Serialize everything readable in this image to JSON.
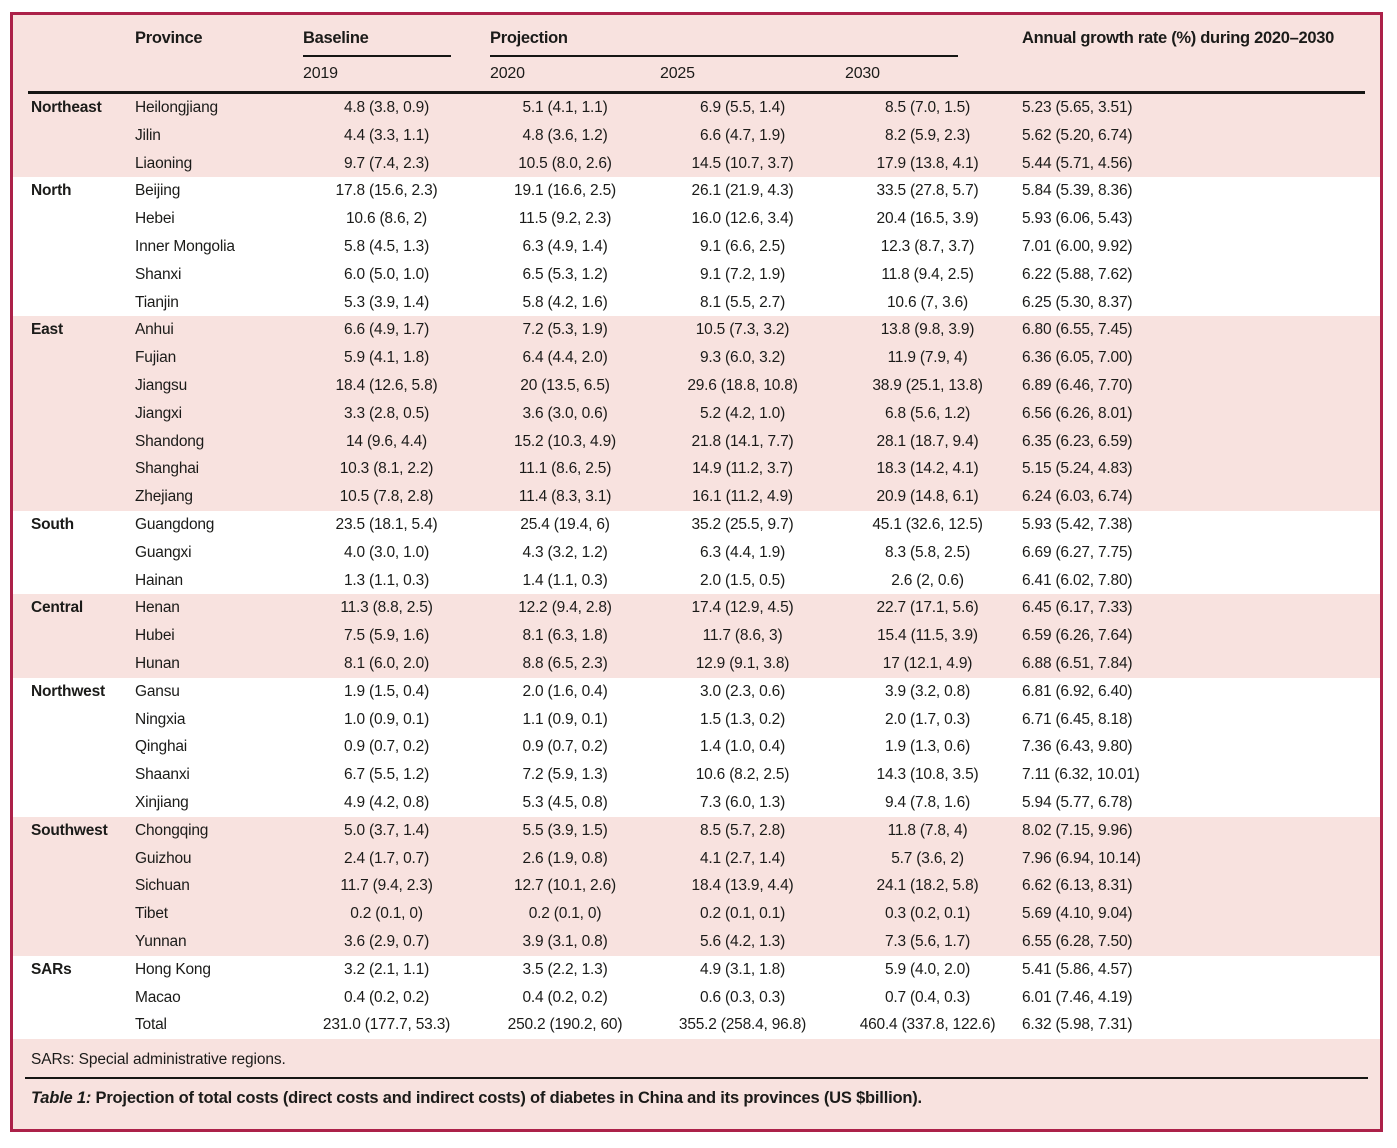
{
  "colors": {
    "frame_border": "#ac2149",
    "band_pink": "#f8e2df",
    "band_white": "#ffffff",
    "rule": "#161614",
    "text": "#1b1b19"
  },
  "header": {
    "province": "Province",
    "baseline_group": "Baseline",
    "projection_group": "Projection",
    "growth": "Annual growth rate (%) during 2020–2030",
    "baseline_year": "2019",
    "projection_years": [
      "2020",
      "2025",
      "2030"
    ]
  },
  "sections": [
    {
      "region": "Northeast",
      "rows": [
        {
          "province": "Heilongjiang",
          "baseline": "4.8 (3.8, 0.9)",
          "y2020": "5.1 (4.1, 1.1)",
          "y2025": "6.9 (5.5, 1.4)",
          "y2030": "8.5 (7.0, 1.5)",
          "growth": "5.23 (5.65, 3.51)"
        },
        {
          "province": "Jilin",
          "baseline": "4.4 (3.3, 1.1)",
          "y2020": "4.8 (3.6, 1.2)",
          "y2025": "6.6 (4.7, 1.9)",
          "y2030": "8.2 (5.9, 2.3)",
          "growth": "5.62 (5.20, 6.74)"
        },
        {
          "province": "Liaoning",
          "baseline": "9.7 (7.4, 2.3)",
          "y2020": "10.5 (8.0, 2.6)",
          "y2025": "14.5 (10.7, 3.7)",
          "y2030": "17.9 (13.8, 4.1)",
          "growth": "5.44 (5.71, 4.56)"
        }
      ]
    },
    {
      "region": "North",
      "rows": [
        {
          "province": "Beijing",
          "baseline": "17.8 (15.6, 2.3)",
          "y2020": "19.1 (16.6, 2.5)",
          "y2025": "26.1 (21.9, 4.3)",
          "y2030": "33.5 (27.8, 5.7)",
          "growth": "5.84 (5.39, 8.36)"
        },
        {
          "province": "Hebei",
          "baseline": "10.6 (8.6, 2)",
          "y2020": "11.5 (9.2, 2.3)",
          "y2025": "16.0 (12.6, 3.4)",
          "y2030": "20.4 (16.5, 3.9)",
          "growth": "5.93 (6.06, 5.43)"
        },
        {
          "province": "Inner Mongolia",
          "baseline": "5.8 (4.5, 1.3)",
          "y2020": "6.3 (4.9, 1.4)",
          "y2025": "9.1 (6.6, 2.5)",
          "y2030": "12.3 (8.7, 3.7)",
          "growth": "7.01 (6.00, 9.92)"
        },
        {
          "province": "Shanxi",
          "baseline": "6.0 (5.0, 1.0)",
          "y2020": "6.5 (5.3, 1.2)",
          "y2025": "9.1 (7.2, 1.9)",
          "y2030": "11.8 (9.4, 2.5)",
          "growth": "6.22 (5.88, 7.62)"
        },
        {
          "province": "Tianjin",
          "baseline": "5.3 (3.9, 1.4)",
          "y2020": "5.8 (4.2, 1.6)",
          "y2025": "8.1 (5.5, 2.7)",
          "y2030": "10.6 (7, 3.6)",
          "growth": "6.25 (5.30, 8.37)"
        }
      ]
    },
    {
      "region": "East",
      "rows": [
        {
          "province": "Anhui",
          "baseline": "6.6 (4.9, 1.7)",
          "y2020": "7.2 (5.3, 1.9)",
          "y2025": "10.5 (7.3, 3.2)",
          "y2030": "13.8 (9.8, 3.9)",
          "growth": "6.80 (6.55, 7.45)"
        },
        {
          "province": "Fujian",
          "baseline": "5.9 (4.1, 1.8)",
          "y2020": "6.4 (4.4, 2.0)",
          "y2025": "9.3 (6.0, 3.2)",
          "y2030": "11.9 (7.9, 4)",
          "growth": "6.36 (6.05, 7.00)"
        },
        {
          "province": "Jiangsu",
          "baseline": "18.4 (12.6, 5.8)",
          "y2020": "20 (13.5, 6.5)",
          "y2025": "29.6 (18.8, 10.8)",
          "y2030": "38.9 (25.1, 13.8)",
          "growth": "6.89 (6.46, 7.70)"
        },
        {
          "province": "Jiangxi",
          "baseline": "3.3 (2.8, 0.5)",
          "y2020": "3.6 (3.0, 0.6)",
          "y2025": "5.2 (4.2, 1.0)",
          "y2030": "6.8 (5.6, 1.2)",
          "growth": "6.56 (6.26, 8.01)"
        },
        {
          "province": "Shandong",
          "baseline": "14 (9.6, 4.4)",
          "y2020": "15.2 (10.3, 4.9)",
          "y2025": "21.8 (14.1, 7.7)",
          "y2030": "28.1 (18.7, 9.4)",
          "growth": "6.35 (6.23, 6.59)"
        },
        {
          "province": "Shanghai",
          "baseline": "10.3 (8.1, 2.2)",
          "y2020": "11.1 (8.6, 2.5)",
          "y2025": "14.9 (11.2, 3.7)",
          "y2030": "18.3 (14.2, 4.1)",
          "growth": "5.15 (5.24, 4.83)"
        },
        {
          "province": "Zhejiang",
          "baseline": "10.5 (7.8, 2.8)",
          "y2020": "11.4 (8.3, 3.1)",
          "y2025": "16.1 (11.2, 4.9)",
          "y2030": "20.9 (14.8, 6.1)",
          "growth": "6.24 (6.03, 6.74)"
        }
      ]
    },
    {
      "region": "South",
      "rows": [
        {
          "province": "Guangdong",
          "baseline": "23.5 (18.1, 5.4)",
          "y2020": "25.4 (19.4, 6)",
          "y2025": "35.2 (25.5, 9.7)",
          "y2030": "45.1 (32.6, 12.5)",
          "growth": "5.93 (5.42, 7.38)"
        },
        {
          "province": "Guangxi",
          "baseline": "4.0 (3.0, 1.0)",
          "y2020": "4.3 (3.2, 1.2)",
          "y2025": "6.3 (4.4, 1.9)",
          "y2030": "8.3 (5.8, 2.5)",
          "growth": "6.69 (6.27, 7.75)"
        },
        {
          "province": "Hainan",
          "baseline": "1.3 (1.1, 0.3)",
          "y2020": "1.4 (1.1, 0.3)",
          "y2025": "2.0 (1.5, 0.5)",
          "y2030": "2.6 (2, 0.6)",
          "growth": "6.41 (6.02, 7.80)"
        }
      ]
    },
    {
      "region": "Central",
      "rows": [
        {
          "province": "Henan",
          "baseline": "11.3 (8.8, 2.5)",
          "y2020": "12.2 (9.4, 2.8)",
          "y2025": "17.4 (12.9, 4.5)",
          "y2030": "22.7 (17.1, 5.6)",
          "growth": "6.45 (6.17, 7.33)"
        },
        {
          "province": "Hubei",
          "baseline": "7.5 (5.9, 1.6)",
          "y2020": "8.1 (6.3, 1.8)",
          "y2025": "11.7 (8.6, 3)",
          "y2030": "15.4 (11.5, 3.9)",
          "growth": "6.59 (6.26, 7.64)"
        },
        {
          "province": "Hunan",
          "baseline": "8.1 (6.0, 2.0)",
          "y2020": "8.8 (6.5, 2.3)",
          "y2025": "12.9 (9.1, 3.8)",
          "y2030": "17 (12.1, 4.9)",
          "growth": "6.88 (6.51, 7.84)"
        }
      ]
    },
    {
      "region": "Northwest",
      "rows": [
        {
          "province": "Gansu",
          "baseline": "1.9 (1.5, 0.4)",
          "y2020": "2.0 (1.6, 0.4)",
          "y2025": "3.0 (2.3, 0.6)",
          "y2030": "3.9 (3.2, 0.8)",
          "growth": "6.81 (6.92, 6.40)"
        },
        {
          "province": "Ningxia",
          "baseline": "1.0 (0.9, 0.1)",
          "y2020": "1.1 (0.9, 0.1)",
          "y2025": "1.5 (1.3, 0.2)",
          "y2030": "2.0 (1.7, 0.3)",
          "growth": "6.71 (6.45, 8.18)"
        },
        {
          "province": "Qinghai",
          "baseline": "0.9 (0.7, 0.2)",
          "y2020": "0.9 (0.7, 0.2)",
          "y2025": "1.4 (1.0, 0.4)",
          "y2030": "1.9 (1.3, 0.6)",
          "growth": "7.36 (6.43, 9.80)"
        },
        {
          "province": "Shaanxi",
          "baseline": "6.7 (5.5, 1.2)",
          "y2020": "7.2 (5.9, 1.3)",
          "y2025": "10.6 (8.2, 2.5)",
          "y2030": "14.3 (10.8, 3.5)",
          "growth": "7.11 (6.32, 10.01)"
        },
        {
          "province": "Xinjiang",
          "baseline": "4.9 (4.2, 0.8)",
          "y2020": "5.3 (4.5, 0.8)",
          "y2025": "7.3 (6.0, 1.3)",
          "y2030": "9.4 (7.8, 1.6)",
          "growth": "5.94 (5.77, 6.78)"
        }
      ]
    },
    {
      "region": "Southwest",
      "rows": [
        {
          "province": "Chongqing",
          "baseline": "5.0 (3.7, 1.4)",
          "y2020": "5.5 (3.9, 1.5)",
          "y2025": "8.5 (5.7, 2.8)",
          "y2030": "11.8 (7.8, 4)",
          "growth": "8.02 (7.15, 9.96)"
        },
        {
          "province": "Guizhou",
          "baseline": "2.4 (1.7, 0.7)",
          "y2020": "2.6 (1.9, 0.8)",
          "y2025": "4.1 (2.7, 1.4)",
          "y2030": "5.7 (3.6, 2)",
          "growth": "7.96 (6.94, 10.14)"
        },
        {
          "province": "Sichuan",
          "baseline": "11.7 (9.4, 2.3)",
          "y2020": "12.7 (10.1, 2.6)",
          "y2025": "18.4 (13.9, 4.4)",
          "y2030": "24.1 (18.2, 5.8)",
          "growth": "6.62 (6.13, 8.31)"
        },
        {
          "province": "Tibet",
          "baseline": "0.2 (0.1, 0)",
          "y2020": "0.2 (0.1, 0)",
          "y2025": "0.2 (0.1, 0.1)",
          "y2030": "0.3 (0.2, 0.1)",
          "growth": "5.69 (4.10, 9.04)"
        },
        {
          "province": "Yunnan",
          "baseline": "3.6 (2.9, 0.7)",
          "y2020": "3.9 (3.1, 0.8)",
          "y2025": "5.6 (4.2, 1.3)",
          "y2030": "7.3 (5.6, 1.7)",
          "growth": "6.55 (6.28, 7.50)"
        }
      ]
    },
    {
      "region": "SARs",
      "rows": [
        {
          "province": "Hong Kong",
          "baseline": "3.2 (2.1, 1.1)",
          "y2020": "3.5 (2.2, 1.3)",
          "y2025": "4.9 (3.1, 1.8)",
          "y2030": "5.9 (4.0, 2.0)",
          "growth": "5.41 (5.86, 4.57)"
        },
        {
          "province": "Macao",
          "baseline": "0.4 (0.2, 0.2)",
          "y2020": "0.4 (0.2, 0.2)",
          "y2025": "0.6 (0.3, 0.3)",
          "y2030": "0.7 (0.4, 0.3)",
          "growth": "6.01 (7.46, 4.19)"
        },
        {
          "province": "Total",
          "baseline": "231.0 (177.7, 53.3)",
          "y2020": "250.2 (190.2, 60)",
          "y2025": "355.2 (258.4, 96.8)",
          "y2030": "460.4 (337.8, 122.6)",
          "growth": "6.32 (5.98, 7.31)"
        }
      ]
    }
  ],
  "footnote": "SARs: Special administrative regions.",
  "caption": {
    "label": "Table 1:",
    "text": " Projection of total costs (direct costs and indirect costs) of diabetes in China and its provinces (US $billion)."
  }
}
